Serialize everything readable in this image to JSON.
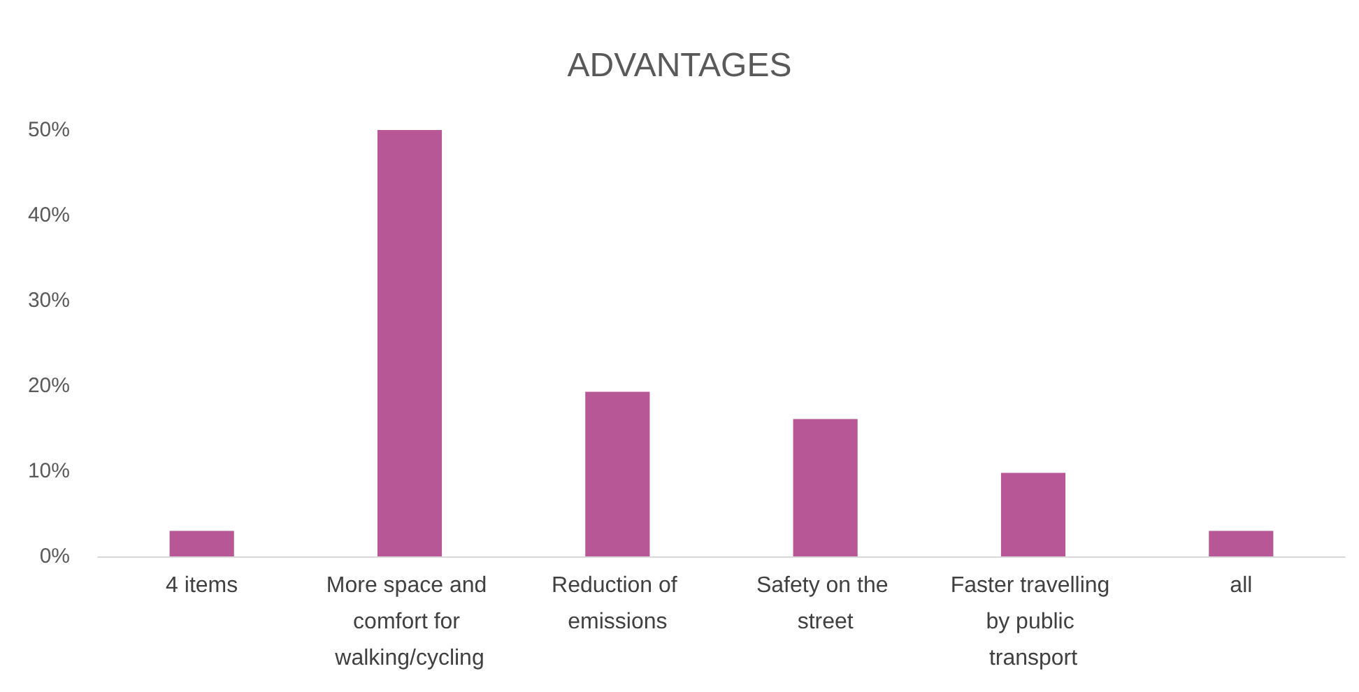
{
  "chart_data": {
    "type": "bar",
    "title": "ADVANTAGES",
    "categories": [
      "4 items",
      "More space and comfort for walking/cycling",
      "Reduction of emissions",
      "Safety on the street",
      "Faster travelling by public transport",
      "all"
    ],
    "values": [
      3,
      50,
      19.3,
      16.1,
      9.8,
      3
    ],
    "color": "#b85796",
    "ylim": [
      0,
      50
    ],
    "yticks": [
      {
        "value": 0,
        "label": "0%"
      },
      {
        "value": 10,
        "label": "10%"
      },
      {
        "value": 20,
        "label": "20%"
      },
      {
        "value": 30,
        "label": "30%"
      },
      {
        "value": 40,
        "label": "40%"
      },
      {
        "value": 50,
        "label": "50%"
      }
    ],
    "grid": false
  }
}
